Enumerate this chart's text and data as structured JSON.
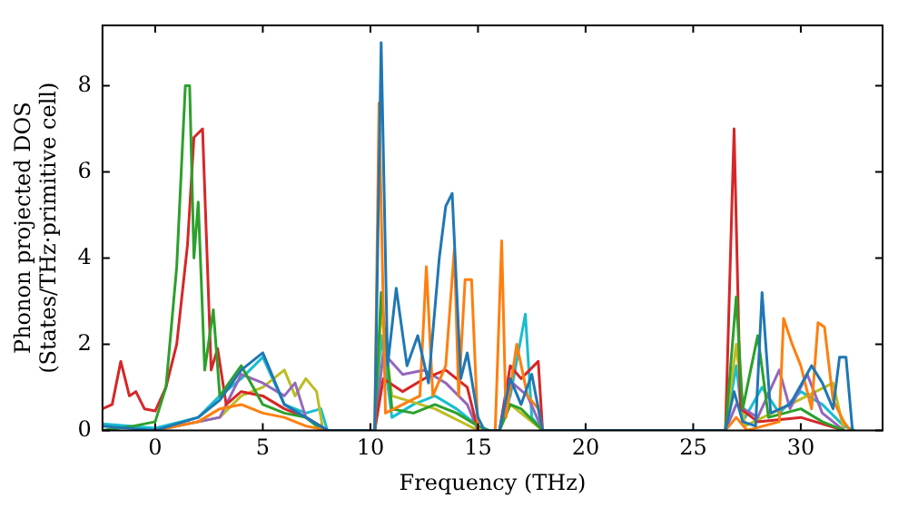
{
  "chart_data": {
    "type": "line",
    "xlabel": "Frequency (THz)",
    "ylabel": "Phonon projected DOS\n(States/THz·primitive cell)",
    "xlim": [
      -2.45,
      33.8
    ],
    "ylim": [
      0,
      9.4
    ],
    "xticks": [
      0,
      5,
      10,
      15,
      20,
      25,
      30
    ],
    "yticks": [
      0,
      2,
      4,
      6,
      8
    ],
    "grid": false,
    "legend": false,
    "marker": "none",
    "line_style": "solid",
    "series": [
      {
        "color": "#1f77b4",
        "x": [
          -2.45,
          0,
          2,
          3,
          4,
          5,
          6,
          7,
          8,
          10.2,
          10.5,
          10.8,
          11.2,
          11.7,
          12.2,
          12.7,
          13.2,
          13.5,
          13.8,
          14.2,
          14.5,
          15,
          15.3,
          16,
          16.5,
          17,
          17.5,
          18,
          26.5,
          26.9,
          27.3,
          27.9,
          28.2,
          28.6,
          29.5,
          30.5,
          31,
          31.5,
          31.8,
          32.1,
          32.4
        ],
        "values": [
          0.1,
          0,
          0.3,
          0.7,
          1.4,
          1.8,
          0.6,
          0.3,
          0,
          0,
          9,
          1.5,
          3.3,
          1.5,
          2.2,
          1.1,
          4,
          5.2,
          5.5,
          1.2,
          1.8,
          0.3,
          0,
          0,
          1.2,
          0.6,
          1.3,
          0,
          0,
          0.9,
          0.2,
          0.1,
          3.2,
          0.4,
          0.6,
          1.5,
          1.1,
          0.5,
          1.7,
          1.7,
          0
        ]
      },
      {
        "color": "#ff7f0e",
        "x": [
          0,
          2,
          3,
          4,
          5,
          6,
          7,
          8,
          10.2,
          10.4,
          10.7,
          11.5,
          12.3,
          12.6,
          12.9,
          13.5,
          13.9,
          14.1,
          14.4,
          14.7,
          15,
          15.8,
          16.1,
          16.3,
          16.8,
          17.3,
          17.8,
          18,
          26.5,
          27,
          27.5,
          29,
          29.2,
          29.6,
          30,
          30.5,
          30.8,
          31.1,
          31.5,
          32,
          32.3
        ],
        "values": [
          0,
          0.2,
          0.5,
          0.6,
          0.4,
          0.3,
          0.1,
          0,
          0,
          7.6,
          0.4,
          0.6,
          0.8,
          3.8,
          0.8,
          1.5,
          4.2,
          0.8,
          3.5,
          3.5,
          0,
          0,
          4.4,
          0.3,
          2,
          0.8,
          0.5,
          0,
          0,
          0.3,
          0,
          0.2,
          2.6,
          2,
          1.5,
          0.5,
          2.5,
          2.4,
          0.7,
          0.2,
          0
        ]
      },
      {
        "color": "#2ca02c",
        "x": [
          -2.45,
          -1,
          0,
          0.5,
          1,
          1.4,
          1.6,
          1.8,
          2,
          2.3,
          2.7,
          3,
          4,
          5,
          6,
          7,
          7.5,
          8,
          10.2,
          10.5,
          11,
          12,
          13,
          14,
          15,
          15.5,
          16,
          16.5,
          17,
          18,
          26.5,
          27,
          27.3,
          28,
          28.5,
          30,
          31,
          32
        ],
        "values": [
          0,
          0.1,
          0.2,
          1,
          3.8,
          8,
          8,
          4,
          5.3,
          1.4,
          2.8,
          0.8,
          1.5,
          0.6,
          0.4,
          0.3,
          0.1,
          0,
          0,
          3.2,
          0.5,
          0.4,
          0.6,
          0.4,
          0.1,
          0,
          0,
          0.6,
          0.5,
          0,
          0,
          3.1,
          0.5,
          2.2,
          0.3,
          0.5,
          0.2,
          0
        ]
      },
      {
        "color": "#d62728",
        "x": [
          -2.45,
          -2,
          -1.6,
          -1.2,
          -0.9,
          -0.5,
          0,
          0.5,
          1,
          1.5,
          1.8,
          2.2,
          2.6,
          2.9,
          3.3,
          4,
          5,
          6,
          7,
          8,
          10.2,
          10.6,
          11.5,
          12.5,
          13.5,
          14.5,
          15,
          16,
          16.5,
          17,
          17.8,
          18,
          26.5,
          26.9,
          27.2,
          28,
          30,
          32
        ],
        "values": [
          0.5,
          0.6,
          1.6,
          0.8,
          0.9,
          0.5,
          0.45,
          1,
          2,
          4.3,
          6.8,
          7,
          1.4,
          1.9,
          0.6,
          0.9,
          0.8,
          0.5,
          0.3,
          0,
          0,
          1.2,
          0.9,
          1.2,
          1.4,
          1,
          0,
          0,
          1.5,
          1.2,
          1.6,
          0,
          0,
          7,
          0.5,
          0.2,
          0.3,
          0
        ]
      },
      {
        "color": "#9467bd",
        "x": [
          0,
          3,
          4,
          5,
          6,
          6.5,
          7,
          8,
          10.2,
          10.6,
          11.5,
          12.5,
          13.5,
          14.5,
          15,
          16,
          16.6,
          17.3,
          18,
          26.5,
          27,
          28,
          29,
          29.5,
          30.3,
          31,
          32
        ],
        "values": [
          0,
          0.3,
          1.3,
          1.1,
          0.8,
          1.1,
          0.3,
          0,
          0,
          1.8,
          1.3,
          1.4,
          1.1,
          0.6,
          0,
          0,
          1.1,
          0.8,
          0,
          0,
          0.6,
          0.3,
          1.4,
          0.5,
          1.3,
          0.4,
          0
        ]
      },
      {
        "color": "#bcbd22",
        "x": [
          0,
          3,
          4,
          5,
          6,
          6.5,
          7,
          7.5,
          7.8,
          10.2,
          10.5,
          11,
          13,
          15,
          16,
          16.5,
          18,
          26.5,
          27,
          27.4,
          29.5,
          31.5,
          32
        ],
        "values": [
          0,
          0.3,
          0.8,
          1,
          1.4,
          0.8,
          1.2,
          0.9,
          0,
          0,
          2.8,
          0.8,
          0.5,
          0,
          0,
          0.6,
          0,
          0,
          2,
          0.1,
          0.6,
          1.1,
          0
        ]
      },
      {
        "color": "#17becf",
        "x": [
          -2.45,
          0,
          2,
          3,
          4,
          5,
          6,
          7,
          7.7,
          8,
          10.2,
          10.5,
          11,
          12,
          13,
          14,
          15,
          15.5,
          16,
          16.5,
          17.2,
          17.5,
          18,
          26.5,
          27,
          27.3,
          28.2,
          29,
          30,
          31,
          32,
          32.5
        ],
        "values": [
          0.15,
          0.05,
          0.3,
          0.8,
          1.2,
          1.7,
          0.6,
          0.4,
          0.5,
          0,
          0,
          2.2,
          0.3,
          0.6,
          0.8,
          0.5,
          0.1,
          0,
          0,
          0.8,
          2.7,
          0.3,
          0,
          0,
          1.5,
          0.2,
          1,
          0.4,
          0.9,
          0.6,
          0.1,
          0
        ]
      }
    ]
  }
}
